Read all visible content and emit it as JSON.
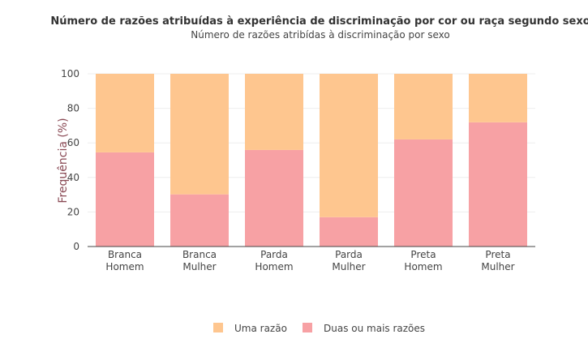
{
  "chart_data": {
    "type": "bar",
    "stacked": true,
    "title": "Número de razões atribuídas à experiência de discriminação por cor ou raça segundo sexo",
    "subtitle": "Número de razões atribídas à discriminação por sexo",
    "xlabel": "",
    "ylabel": "Frequência (%)",
    "ylim": [
      0,
      100
    ],
    "yticks": [
      "0",
      "20",
      "40",
      "60",
      "80",
      "100"
    ],
    "grid": true,
    "legend_position": "bottom",
    "categories": [
      [
        "Branca",
        "Homem"
      ],
      [
        "Branca",
        "Mulher"
      ],
      [
        "Parda",
        "Homem"
      ],
      [
        "Parda",
        "Mulher"
      ],
      [
        "Preta",
        "Homem"
      ],
      [
        "Preta",
        "Mulher"
      ]
    ],
    "series": [
      {
        "name": "Duas ou mais razões",
        "color": "#f7a1a4",
        "values": [
          54.5,
          30.2,
          55.9,
          17.0,
          62.0,
          71.9
        ]
      },
      {
        "name": "Uma razão",
        "color": "#fec68f",
        "values": [
          45.5,
          69.8,
          44.1,
          83.0,
          38.0,
          28.1
        ]
      }
    ],
    "legend_order": [
      "Uma razão",
      "Duas ou mais razões"
    ]
  }
}
